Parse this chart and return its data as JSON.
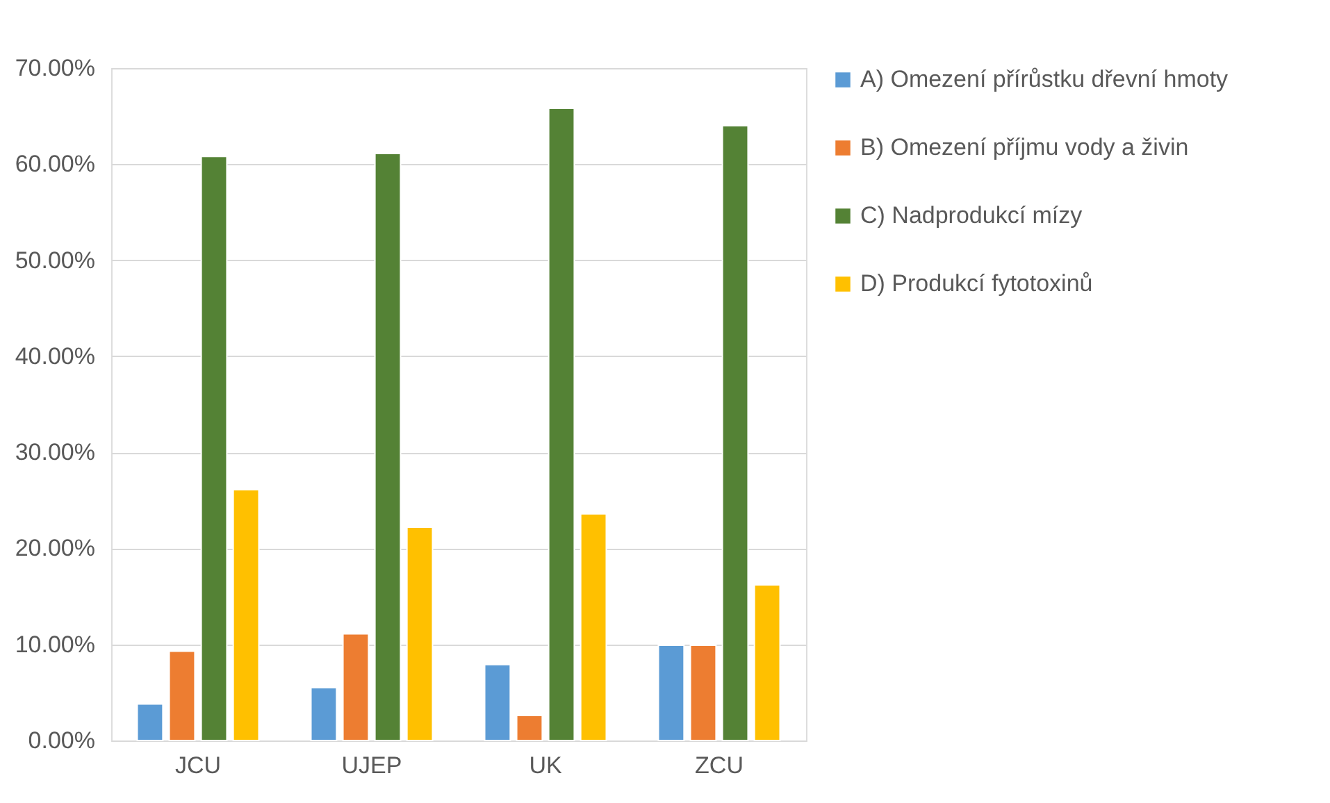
{
  "chart_data": {
    "type": "bar",
    "categories": [
      "JCU",
      "UJEP",
      "UK",
      "ZCU"
    ],
    "series": [
      {
        "name": "A) Omezení přírůstku dřevní hmoty",
        "color": "#5b9bd5",
        "values": [
          0.038,
          0.055,
          0.079,
          0.099
        ]
      },
      {
        "name": "B) Omezení příjmu vody a živin",
        "color": "#ed7d31",
        "values": [
          0.093,
          0.111,
          0.026,
          0.099
        ]
      },
      {
        "name": "C) Nadprodukcí mízy",
        "color": "#548235",
        "values": [
          0.608,
          0.611,
          0.658,
          0.64
        ]
      },
      {
        "name": "D) Produkcí fytotoxinů",
        "color": "#ffc000",
        "values": [
          0.261,
          0.222,
          0.236,
          0.162
        ]
      }
    ],
    "ylim": [
      0,
      0.7
    ],
    "yticks": [
      {
        "value": 0,
        "label": "0.00%"
      },
      {
        "value": 0.1,
        "label": "10.00%"
      },
      {
        "value": 0.2,
        "label": "20.00%"
      },
      {
        "value": 0.3,
        "label": "30.00%"
      },
      {
        "value": 0.4,
        "label": "40.00%"
      },
      {
        "value": 0.5,
        "label": "50.00%"
      },
      {
        "value": 0.6,
        "label": "60.00%"
      },
      {
        "value": 0.7,
        "label": "70.00%"
      }
    ],
    "grid": "y",
    "legend": "right"
  }
}
